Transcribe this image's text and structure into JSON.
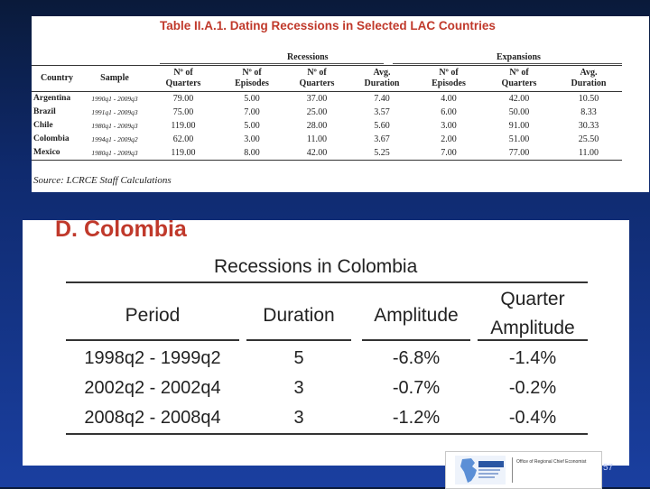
{
  "table1": {
    "title": "Table II.A.1. Dating Recessions in Selected LAC Countries",
    "group_recessions": "Recessions",
    "group_expansions": "Expansions",
    "headers": {
      "country": "Country",
      "sample": "Sample",
      "rec_quarters_1": "Nº of",
      "rec_quarters_2": "Quarters",
      "rec_episodes_1": "Nº of",
      "rec_episodes_2": "Episodes",
      "rec_q2_1": "Nº of",
      "rec_q2_2": "Quarters",
      "rec_avg_1": "Avg.",
      "rec_avg_2": "Duration",
      "exp_episodes_1": "Nº of",
      "exp_episodes_2": "Episodes",
      "exp_quarters_1": "Nº of",
      "exp_quarters_2": "Quarters",
      "exp_avg_1": "Avg.",
      "exp_avg_2": "Duration"
    },
    "rows": [
      {
        "country": "Argentina",
        "sample": "1990q1 - 2009q3",
        "q": "79.00",
        "ep": "5.00",
        "rq": "37.00",
        "rd": "7.40",
        "ee": "4.00",
        "eq": "42.00",
        "ed": "10.50"
      },
      {
        "country": "Brazil",
        "sample": "1991q1 - 2009q3",
        "q": "75.00",
        "ep": "7.00",
        "rq": "25.00",
        "rd": "3.57",
        "ee": "6.00",
        "eq": "50.00",
        "ed": "8.33"
      },
      {
        "country": "Chile",
        "sample": "1980q1 - 2009q3",
        "q": "119.00",
        "ep": "5.00",
        "rq": "28.00",
        "rd": "5.60",
        "ee": "3.00",
        "eq": "91.00",
        "ed": "30.33"
      },
      {
        "country": "Colombia",
        "sample": "1994q1 - 2009q2",
        "q": "62.00",
        "ep": "3.00",
        "rq": "11.00",
        "rd": "3.67",
        "ee": "2.00",
        "eq": "51.00",
        "ed": "25.50"
      },
      {
        "country": "Mexico",
        "sample": "1980q1 - 2009q3",
        "q": "119.00",
        "ep": "8.00",
        "rq": "42.00",
        "rd": "5.25",
        "ee": "7.00",
        "eq": "77.00",
        "ed": "11.00"
      }
    ],
    "source": "Source: LCRCE Staff Calculations"
  },
  "table2": {
    "section_title": "D.  Colombia",
    "title": "Recessions in Colombia",
    "headers": {
      "period": "Period",
      "duration": "Duration",
      "amplitude": "Amplitude",
      "quarter_amp_1": "Quarter",
      "quarter_amp_2": "Amplitude"
    },
    "rows": [
      {
        "period": "1998q2 - 1999q2",
        "duration": "5",
        "amplitude": "-6.8%",
        "qamp": "-1.4%"
      },
      {
        "period": "2002q2 - 2002q4",
        "duration": "3",
        "amplitude": "-0.7%",
        "qamp": "-0.2%"
      },
      {
        "period": "2008q2 - 2008q4",
        "duration": "3",
        "amplitude": "-1.2%",
        "qamp": "-0.4%"
      }
    ]
  },
  "footer": {
    "logo_text": "Office of Regional Chief Economist",
    "page_number": "57"
  }
}
